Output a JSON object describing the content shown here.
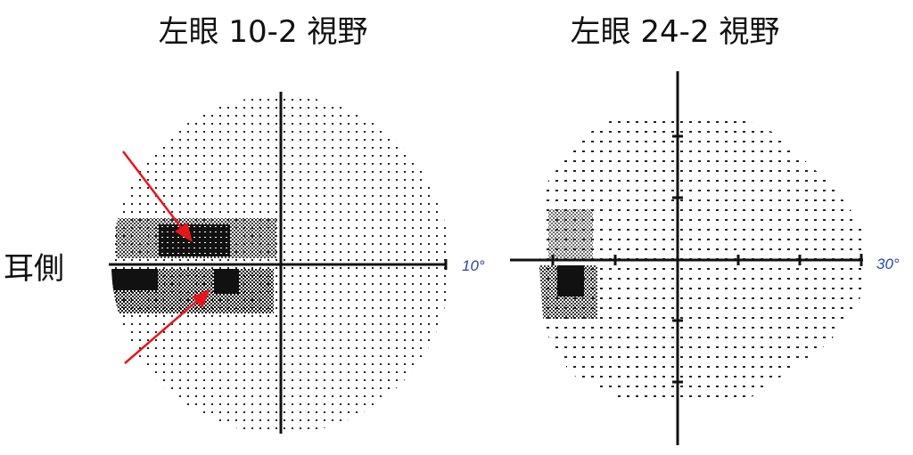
{
  "left_panel": {
    "title": "左眼 10-2 視野",
    "scale_label": "10°"
  },
  "right_panel": {
    "title": "左眼 24-2 視野",
    "scale_label": "30°"
  },
  "side_label": "耳側",
  "colors": {
    "arrow": "#e8151b",
    "scale_label": "#2a46a8",
    "axis": "#111111"
  }
}
